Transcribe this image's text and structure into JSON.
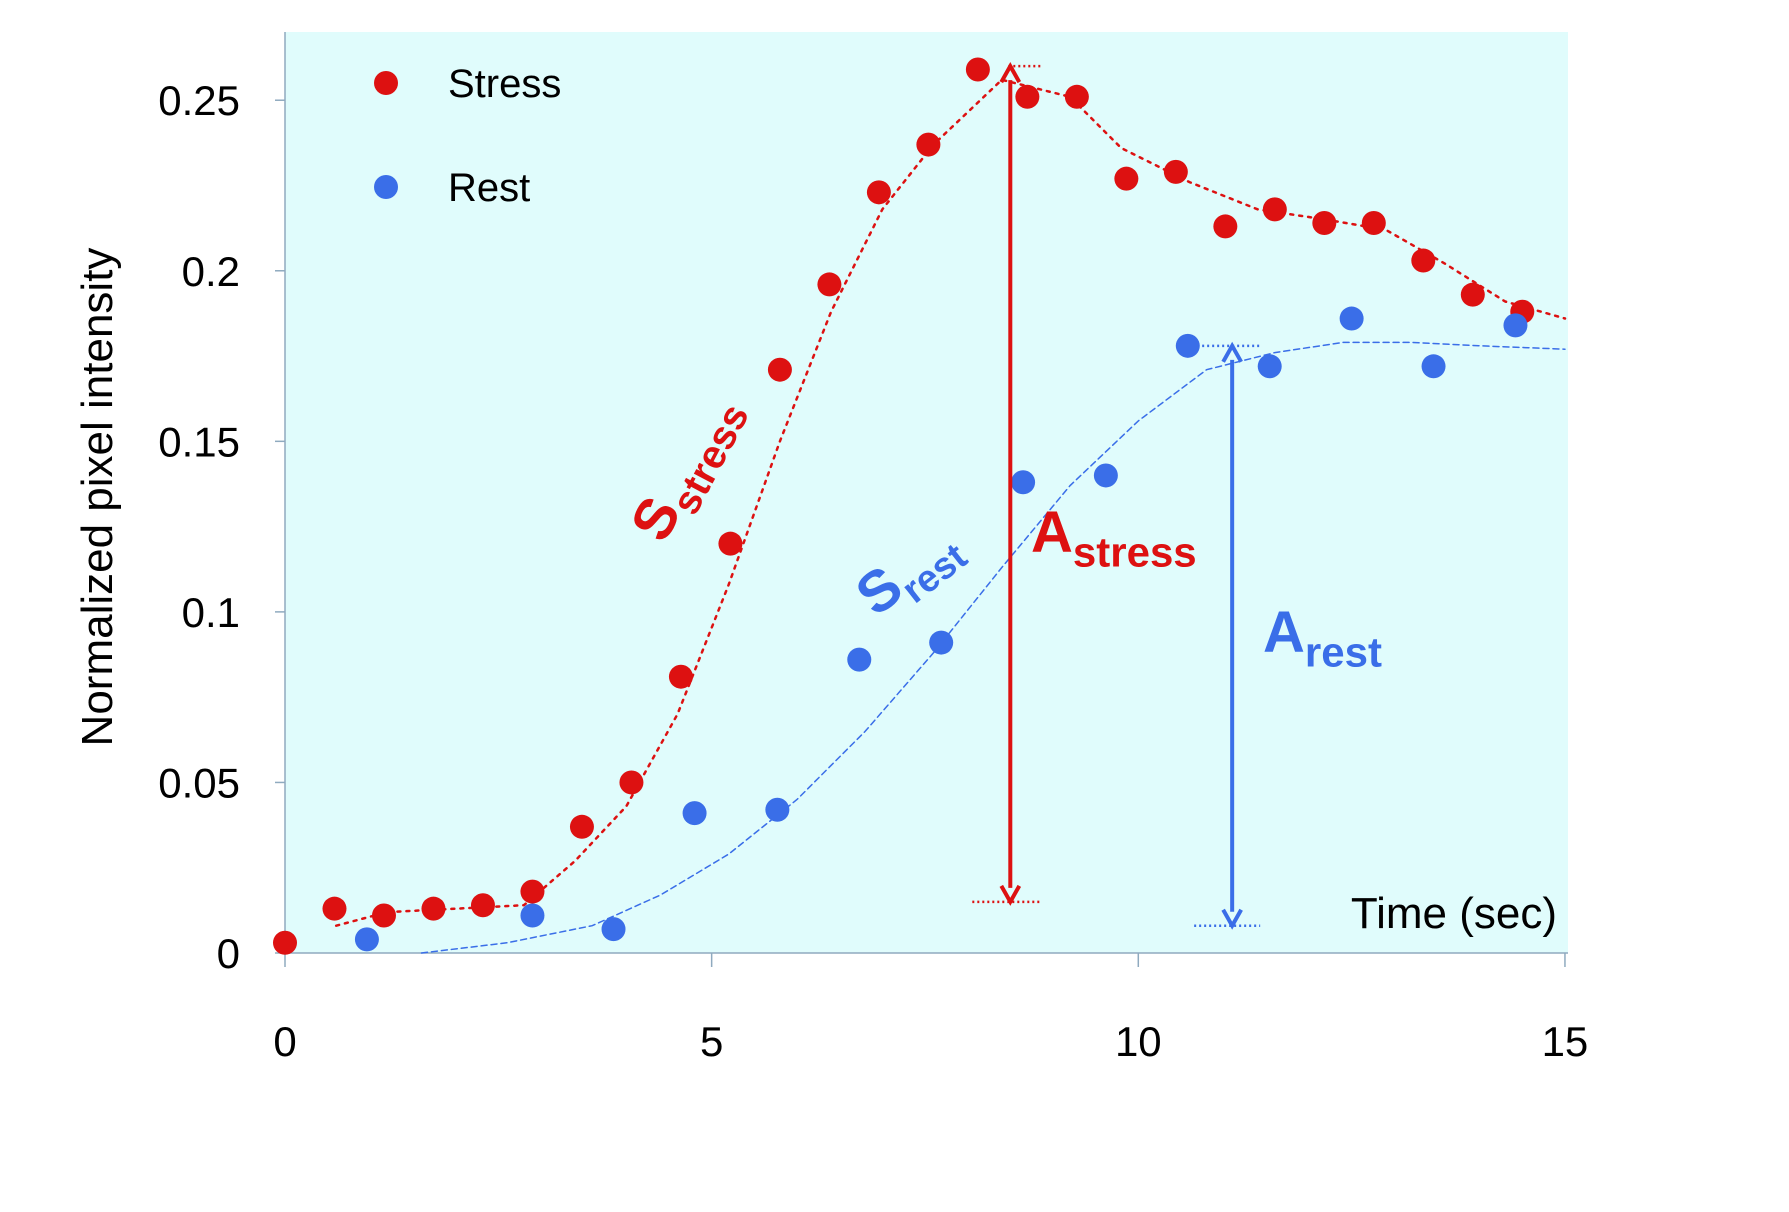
{
  "chart_data": {
    "type": "scatter",
    "title": "",
    "xlabel": "Time (sec)",
    "ylabel": "Normalized pixel intensity",
    "xlim": [
      0,
      15
    ],
    "ylim": [
      0,
      0.27
    ],
    "x_ticks": [
      "0",
      "5",
      "10",
      "15"
    ],
    "y_ticks": [
      "0",
      "0.05",
      "0.1",
      "0.15",
      "0.2",
      "0.25"
    ],
    "grid": false,
    "plot_background": "#e0fcfc",
    "legend_position": "top-left",
    "series": [
      {
        "name": "Stress",
        "color": "#dd1111",
        "points": [
          [
            0.0,
            0.003
          ],
          [
            0.58,
            0.013
          ],
          [
            1.16,
            0.011
          ],
          [
            1.74,
            0.013
          ],
          [
            2.32,
            0.014
          ],
          [
            2.9,
            0.018
          ],
          [
            3.48,
            0.037
          ],
          [
            4.06,
            0.05
          ],
          [
            4.64,
            0.081
          ],
          [
            5.22,
            0.12
          ],
          [
            5.8,
            0.171
          ],
          [
            6.38,
            0.196
          ],
          [
            6.96,
            0.223
          ],
          [
            7.54,
            0.237
          ],
          [
            8.12,
            0.259
          ],
          [
            8.7,
            0.251
          ],
          [
            9.28,
            0.251
          ],
          [
            9.86,
            0.227
          ],
          [
            10.44,
            0.229
          ],
          [
            11.02,
            0.213
          ],
          [
            11.6,
            0.218
          ],
          [
            12.18,
            0.214
          ],
          [
            12.76,
            0.214
          ],
          [
            13.34,
            0.203
          ],
          [
            13.92,
            0.193
          ],
          [
            14.5,
            0.188
          ]
        ],
        "fit": [
          [
            0.6,
            0.008
          ],
          [
            1.2,
            0.012
          ],
          [
            2.0,
            0.013
          ],
          [
            2.8,
            0.014
          ],
          [
            3.4,
            0.027
          ],
          [
            4.0,
            0.043
          ],
          [
            4.6,
            0.07
          ],
          [
            5.2,
            0.108
          ],
          [
            5.8,
            0.15
          ],
          [
            6.4,
            0.188
          ],
          [
            7.0,
            0.218
          ],
          [
            7.6,
            0.237
          ],
          [
            8.4,
            0.256
          ],
          [
            9.2,
            0.251
          ],
          [
            9.8,
            0.236
          ],
          [
            10.6,
            0.226
          ],
          [
            11.4,
            0.218
          ],
          [
            12.2,
            0.215
          ],
          [
            12.9,
            0.212
          ],
          [
            13.6,
            0.202
          ],
          [
            14.3,
            0.191
          ],
          [
            15.0,
            0.186
          ]
        ]
      },
      {
        "name": "Rest",
        "color": "#3a6ee8",
        "points": [
          [
            0.96,
            0.004
          ],
          [
            2.9,
            0.011
          ],
          [
            3.85,
            0.007
          ],
          [
            4.8,
            0.041
          ],
          [
            5.77,
            0.042
          ],
          [
            6.73,
            0.086
          ],
          [
            7.69,
            0.091
          ],
          [
            8.65,
            0.138
          ],
          [
            9.62,
            0.14
          ],
          [
            10.58,
            0.178
          ],
          [
            11.54,
            0.172
          ],
          [
            12.5,
            0.186
          ],
          [
            13.46,
            0.172
          ],
          [
            14.42,
            0.184
          ]
        ],
        "fit": [
          [
            1.6,
            0.0
          ],
          [
            2.6,
            0.003
          ],
          [
            3.6,
            0.008
          ],
          [
            4.4,
            0.017
          ],
          [
            5.2,
            0.029
          ],
          [
            6.0,
            0.045
          ],
          [
            6.8,
            0.065
          ],
          [
            7.6,
            0.088
          ],
          [
            8.4,
            0.113
          ],
          [
            9.2,
            0.137
          ],
          [
            10.0,
            0.156
          ],
          [
            10.8,
            0.171
          ],
          [
            11.6,
            0.176
          ],
          [
            12.4,
            0.179
          ],
          [
            13.2,
            0.179
          ],
          [
            14.0,
            0.178
          ],
          [
            15.0,
            0.177
          ]
        ]
      }
    ],
    "annotations": {
      "s_stress": {
        "main": "S",
        "sub": "stress"
      },
      "s_rest": {
        "main": "S",
        "sub": "rest"
      },
      "a_stress": {
        "main": "A",
        "sub": "stress",
        "from": 0.015,
        "to": 0.26
      },
      "a_rest": {
        "main": "A",
        "sub": "rest",
        "from": 0.008,
        "to": 0.178
      }
    }
  }
}
